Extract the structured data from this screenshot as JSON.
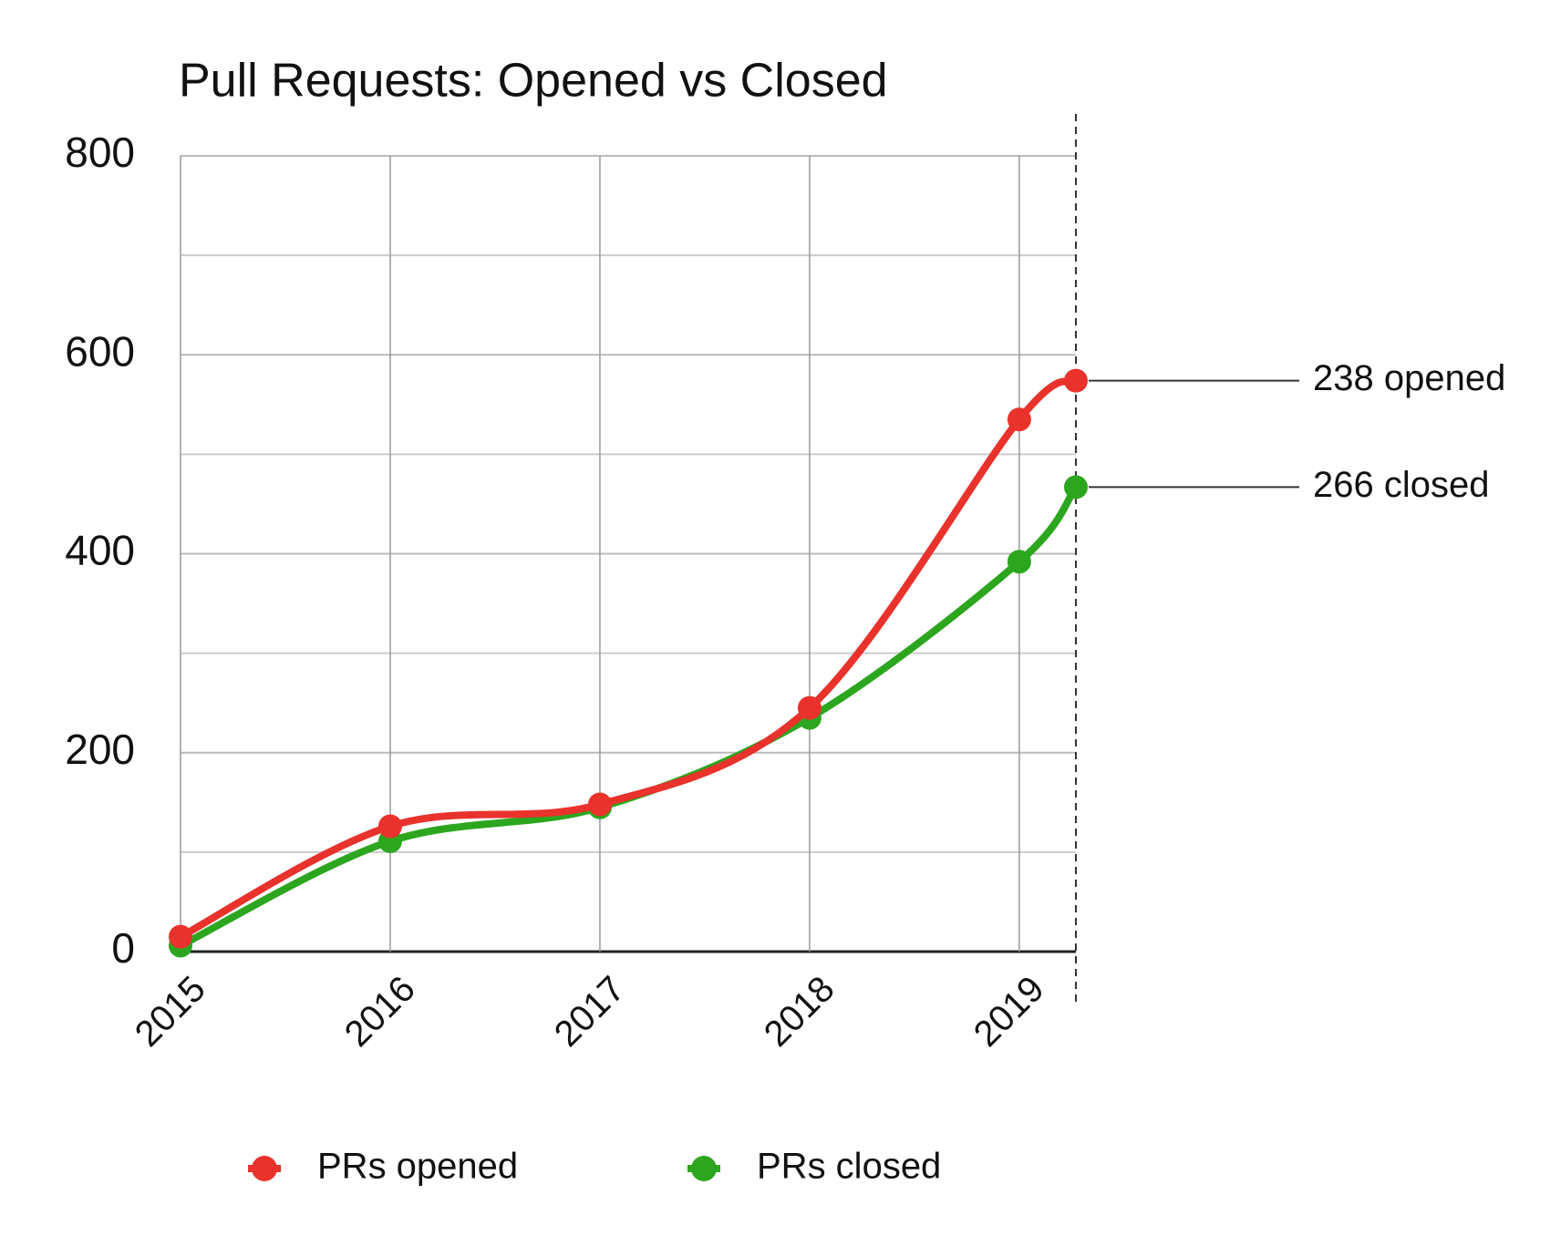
{
  "chart_data": {
    "type": "line",
    "title": "Pull Requests: Opened vs Closed",
    "x": [
      2015,
      2016,
      2017,
      2018,
      2019,
      2019.27
    ],
    "xlim": [
      2015,
      2019.27
    ],
    "xticks": [
      2015,
      2016,
      2017,
      2018,
      2019
    ],
    "ylim": [
      0,
      800
    ],
    "yticks": [
      0,
      200,
      400,
      600,
      800
    ],
    "y_minor_ticks": [
      100,
      300,
      500,
      700
    ],
    "grid": true,
    "legend": "bottom",
    "series": [
      {
        "name": "PRs opened",
        "color": "#e8322b",
        "values": [
          15,
          126,
          148,
          245,
          535,
          574
        ]
      },
      {
        "name": "PRs closed",
        "color": "#2ca61f",
        "values": [
          6,
          111,
          145,
          235,
          392,
          467
        ]
      }
    ],
    "annotations": [
      "238 opened",
      "266 closed"
    ]
  }
}
